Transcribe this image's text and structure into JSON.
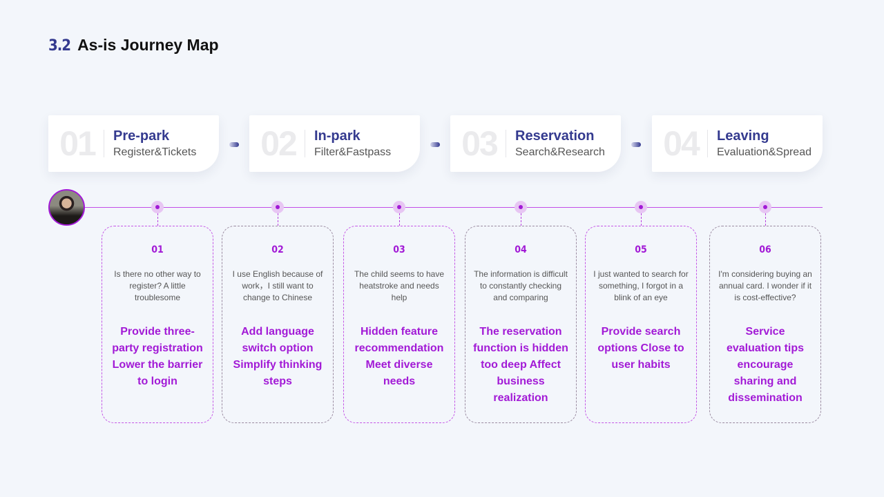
{
  "header": {
    "section_number": "3.2",
    "title": "As-is Journey Map"
  },
  "stages": [
    {
      "num": "01",
      "name": "Pre-park",
      "sub": "Register&Tickets"
    },
    {
      "num": "02",
      "name": "In-park",
      "sub": "Filter&Fastpass"
    },
    {
      "num": "03",
      "name": "Reservation",
      "sub": "Search&Research"
    },
    {
      "num": "04",
      "name": "Leaving",
      "sub": "Evaluation&Spread"
    }
  ],
  "colors": {
    "primary": "#343a8f",
    "accent": "#a21ad6"
  },
  "cards": [
    {
      "num": "01",
      "quote": "Is there no other way to register? A little troublesome",
      "action": "Provide three-party registration Lower the barrier to login"
    },
    {
      "num": "02",
      "quote": "I use English because of work，I still want to change to Chinese",
      "action": "Add language switch option Simplify thinking steps"
    },
    {
      "num": "03",
      "quote": "The child seems to have heatstroke and needs help",
      "action": "Hidden feature recommendation Meet diverse needs"
    },
    {
      "num": "04",
      "quote": "The information is difficult to constantly checking and comparing",
      "action": "The reservation function is hidden too deep Affect business realization"
    },
    {
      "num": "05",
      "quote": "I just wanted to search for something, I forgot in a blink of an eye",
      "action": "Provide search options Close to user habits"
    },
    {
      "num": "06",
      "quote": "I'm considering buying an annual card. I wonder if it is cost-effective?",
      "action": "Service evaluation tips encourage sharing and dissemination"
    }
  ]
}
